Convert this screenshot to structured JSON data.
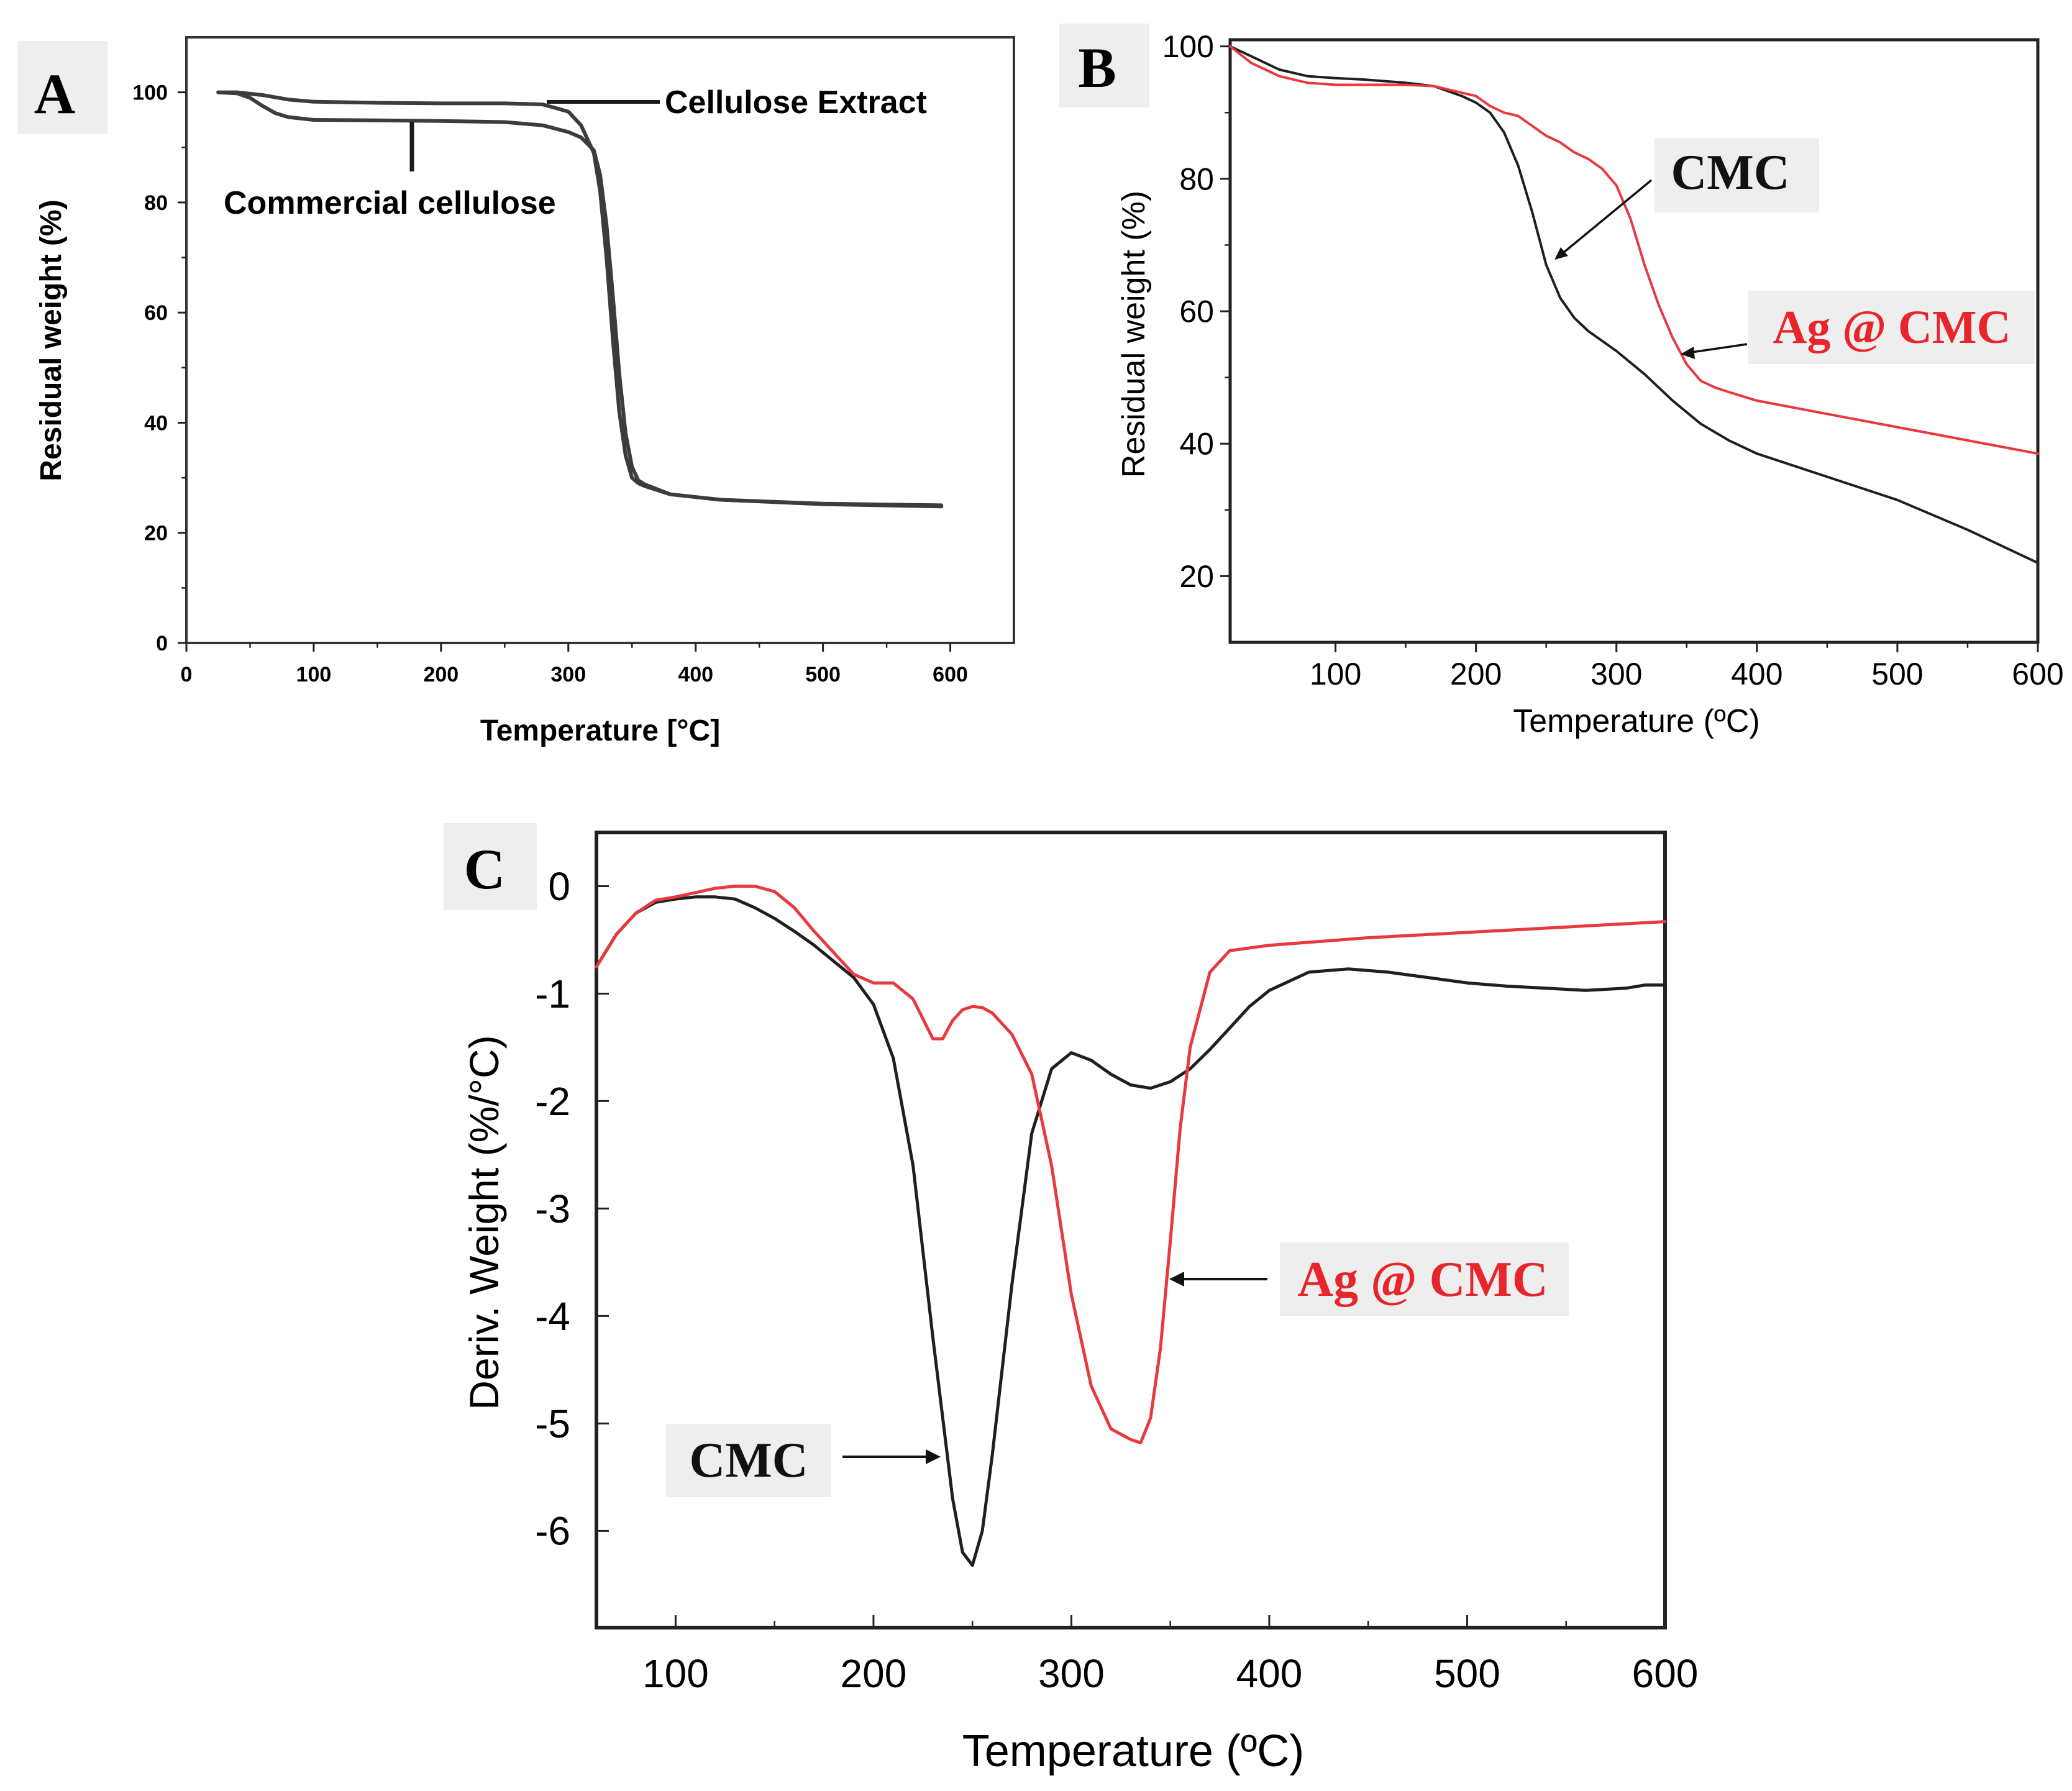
{
  "colors": {
    "black_series": "#1f1f1f",
    "red_series": "#e8393e",
    "grey_series": "#3c3c3c",
    "label_box": "#eeeeee"
  },
  "chart_data": [
    {
      "panel": "A",
      "type": "line",
      "xlabel": "Temperature [°C]",
      "ylabel": "Residual weight (%)",
      "xlim": [
        0,
        650
      ],
      "ylim": [
        0,
        110
      ],
      "xticks": [
        0,
        100,
        200,
        300,
        400,
        500,
        600
      ],
      "yticks": [
        0,
        20,
        40,
        60,
        80,
        100
      ],
      "annotations": [
        "Cellulose Extract",
        "Commercial cellulose"
      ],
      "series": [
        {
          "name": "Cellulose Extract",
          "x": [
            25,
            40,
            60,
            80,
            100,
            150,
            200,
            250,
            280,
            300,
            310,
            320,
            325,
            330,
            335,
            340,
            345,
            350,
            355,
            360,
            380,
            420,
            500,
            593
          ],
          "y": [
            100,
            100,
            99.5,
            98.7,
            98.3,
            98.1,
            98,
            98,
            97.8,
            96.5,
            94,
            89,
            82,
            70,
            55,
            42,
            34,
            30,
            29,
            28.5,
            27,
            26,
            25.3,
            25
          ]
        },
        {
          "name": "Commercial cellulose",
          "x": [
            25,
            40,
            50,
            60,
            70,
            80,
            100,
            150,
            200,
            250,
            280,
            300,
            310,
            320,
            325,
            330,
            335,
            340,
            345,
            350,
            355,
            360,
            380,
            420,
            500,
            593
          ],
          "y": [
            100,
            99.8,
            99,
            97.5,
            96.2,
            95.5,
            95,
            94.9,
            94.8,
            94.6,
            94,
            92.8,
            91.8,
            89.5,
            85,
            76,
            63,
            49,
            38,
            32,
            29.5,
            28.8,
            27,
            26,
            25.2,
            24.8
          ]
        }
      ]
    },
    {
      "panel": "B",
      "type": "line",
      "xlabel": "Temperature (ºC)",
      "ylabel": "Residual weight (%)",
      "xlim": [
        25,
        600
      ],
      "ylim": [
        10,
        101
      ],
      "xticks": [
        100,
        200,
        300,
        400,
        500,
        600
      ],
      "yticks": [
        20,
        40,
        60,
        80,
        100
      ],
      "annotations": [
        "CMC",
        "Ag @ CMC"
      ],
      "series": [
        {
          "name": "CMC",
          "x": [
            25,
            40,
            60,
            80,
            100,
            120,
            150,
            170,
            190,
            200,
            210,
            220,
            230,
            240,
            250,
            260,
            270,
            280,
            300,
            320,
            340,
            360,
            380,
            400,
            450,
            500,
            550,
            600
          ],
          "y": [
            100,
            98.5,
            96.5,
            95.5,
            95.2,
            95,
            94.5,
            94,
            92.5,
            91.5,
            90,
            87,
            82,
            75,
            67,
            62,
            59,
            57,
            54,
            50.5,
            46.5,
            43,
            40.5,
            38.5,
            35,
            31.5,
            27,
            22
          ]
        },
        {
          "name": "Ag @ CMC",
          "x": [
            25,
            40,
            60,
            80,
            100,
            120,
            150,
            170,
            190,
            200,
            210,
            220,
            230,
            240,
            250,
            260,
            270,
            280,
            290,
            300,
            310,
            320,
            330,
            340,
            350,
            360,
            370,
            380,
            400,
            450,
            500,
            550,
            600
          ],
          "y": [
            100,
            97.5,
            95.5,
            94.5,
            94.2,
            94.2,
            94.2,
            94,
            93,
            92.5,
            91,
            90,
            89.5,
            88,
            86.5,
            85.5,
            84,
            83,
            81.5,
            79,
            74,
            67,
            61,
            56,
            52,
            49.5,
            48.5,
            47.8,
            46.5,
            44.5,
            42.5,
            40.5,
            38.5
          ]
        }
      ]
    },
    {
      "panel": "C",
      "type": "line",
      "xlabel": "Temperature (ºC)",
      "ylabel": "Deriv. Weight (%/°C)",
      "xlim": [
        60,
        600
      ],
      "ylim": [
        -6.9,
        0.5
      ],
      "xticks": [
        100,
        200,
        300,
        400,
        500,
        600
      ],
      "yticks": [
        0,
        -1,
        -2,
        -3,
        -4,
        -5,
        -6
      ],
      "annotations": [
        "Ag @ CMC",
        "CMC"
      ],
      "series": [
        {
          "name": "CMC",
          "x": [
            60,
            70,
            80,
            90,
            100,
            110,
            120,
            130,
            140,
            150,
            160,
            170,
            180,
            190,
            200,
            210,
            220,
            230,
            240,
            245,
            250,
            255,
            260,
            270,
            280,
            290,
            300,
            310,
            320,
            330,
            340,
            350,
            360,
            370,
            380,
            390,
            400,
            420,
            440,
            460,
            480,
            500,
            520,
            540,
            560,
            580,
            590,
            600
          ],
          "y": [
            -0.75,
            -0.45,
            -0.25,
            -0.15,
            -0.12,
            -0.1,
            -0.1,
            -0.12,
            -0.2,
            -0.3,
            -0.42,
            -0.55,
            -0.7,
            -0.85,
            -1.1,
            -1.6,
            -2.6,
            -4.2,
            -5.7,
            -6.2,
            -6.32,
            -6.0,
            -5.3,
            -3.7,
            -2.3,
            -1.7,
            -1.55,
            -1.62,
            -1.75,
            -1.85,
            -1.88,
            -1.82,
            -1.7,
            -1.52,
            -1.32,
            -1.12,
            -0.97,
            -0.8,
            -0.77,
            -0.8,
            -0.85,
            -0.9,
            -0.93,
            -0.95,
            -0.97,
            -0.95,
            -0.92,
            -0.92
          ]
        },
        {
          "name": "Ag @ CMC",
          "x": [
            60,
            70,
            80,
            90,
            100,
            110,
            120,
            130,
            140,
            150,
            160,
            170,
            180,
            190,
            200,
            210,
            220,
            230,
            235,
            240,
            245,
            250,
            255,
            260,
            270,
            280,
            290,
            300,
            310,
            320,
            330,
            335,
            340,
            345,
            350,
            355,
            360,
            370,
            380,
            400,
            450,
            500,
            550,
            600
          ],
          "y": [
            -0.75,
            -0.45,
            -0.25,
            -0.13,
            -0.1,
            -0.06,
            -0.02,
            0,
            0,
            -0.05,
            -0.2,
            -0.42,
            -0.62,
            -0.82,
            -0.9,
            -0.9,
            -1.05,
            -1.42,
            -1.42,
            -1.25,
            -1.15,
            -1.12,
            -1.13,
            -1.18,
            -1.38,
            -1.75,
            -2.6,
            -3.8,
            -4.65,
            -5.05,
            -5.15,
            -5.18,
            -4.95,
            -4.3,
            -3.3,
            -2.25,
            -1.5,
            -0.8,
            -0.6,
            -0.55,
            -0.48,
            -0.43,
            -0.38,
            -0.33
          ]
        }
      ]
    }
  ]
}
